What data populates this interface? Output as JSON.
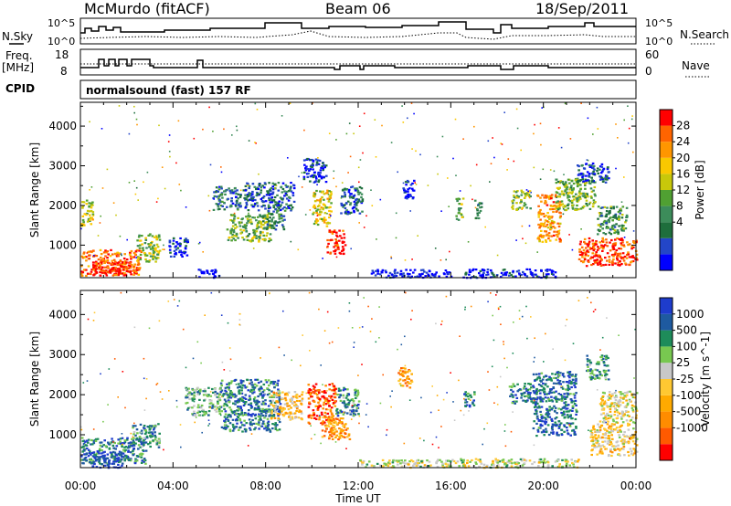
{
  "header": {
    "station": "McMurdo (fitACF)",
    "beam": "Beam 06",
    "date": "18/Sep/2011"
  },
  "strip_labels": {
    "nsky": "N.Sky",
    "nsearch": "N.Search",
    "freq_line1": "Freq.",
    "freq_line2": "[MHz]",
    "nave": "Nave",
    "cpid": "CPID",
    "cpid_value": "normalsound (fast) 157 RF"
  },
  "noise_axis": {
    "left_ticks": [
      "10^5",
      "10^0"
    ],
    "right_ticks": [
      "10^5",
      "10^0"
    ]
  },
  "freq_axis": {
    "left_ticks": [
      "18",
      "8"
    ],
    "right_ticks": [
      "60",
      "0"
    ]
  },
  "chart_data": [
    {
      "type": "heatmap",
      "name": "power",
      "ylabel": "Slant Range [km]",
      "xlabel": "",
      "xlim": [
        0,
        24
      ],
      "ylim": [
        180,
        4600
      ],
      "yticks": [
        1000,
        2000,
        3000,
        4000
      ],
      "colorbar": {
        "label": "Power [dB]",
        "ticks": [
          "28",
          "24",
          "20",
          "16",
          "12",
          "8",
          "4"
        ],
        "colors": [
          "#0000ff",
          "#2346c8",
          "#1e6e3c",
          "#3c8c5a",
          "#50a032",
          "#c8c80a",
          "#fac800",
          "#ff9600",
          "#ff6400",
          "#ff0000"
        ]
      },
      "patches": [
        {
          "t0": 0.0,
          "t1": 2.6,
          "r0": 250,
          "r1": 900,
          "v": 0.85
        },
        {
          "t0": 0.0,
          "t1": 0.5,
          "r0": 1500,
          "r1": 2150,
          "v": 0.55
        },
        {
          "t0": 0.5,
          "t1": 2.2,
          "r0": 250,
          "r1": 600,
          "v": 0.95
        },
        {
          "t0": 2.4,
          "t1": 3.4,
          "r0": 600,
          "r1": 1300,
          "v": 0.5
        },
        {
          "t0": 3.8,
          "t1": 4.6,
          "r0": 700,
          "r1": 1200,
          "v": 0.1
        },
        {
          "t0": 5.7,
          "t1": 6.9,
          "r0": 1900,
          "r1": 2500,
          "v": 0.25
        },
        {
          "t0": 6.3,
          "t1": 8.2,
          "r0": 1100,
          "r1": 1800,
          "v": 0.45
        },
        {
          "t0": 7.0,
          "t1": 9.2,
          "r0": 1900,
          "r1": 2600,
          "v": 0.2
        },
        {
          "t0": 8.0,
          "t1": 8.8,
          "r0": 1400,
          "r1": 1900,
          "v": 0.3
        },
        {
          "t0": 9.6,
          "t1": 10.6,
          "r0": 2600,
          "r1": 3200,
          "v": 0.1
        },
        {
          "t0": 10.0,
          "t1": 10.8,
          "r0": 1500,
          "r1": 2400,
          "v": 0.6
        },
        {
          "t0": 10.6,
          "t1": 11.4,
          "r0": 800,
          "r1": 1400,
          "v": 0.95
        },
        {
          "t0": 11.2,
          "t1": 12.2,
          "r0": 1800,
          "r1": 2500,
          "v": 0.2
        },
        {
          "t0": 13.9,
          "t1": 14.4,
          "r0": 2200,
          "r1": 2700,
          "v": 0.05
        },
        {
          "t0": 16.2,
          "t1": 16.5,
          "r0": 1600,
          "r1": 2200,
          "v": 0.45
        },
        {
          "t0": 17.0,
          "t1": 17.3,
          "r0": 1700,
          "r1": 2200,
          "v": 0.3
        },
        {
          "t0": 18.6,
          "t1": 19.4,
          "r0": 1900,
          "r1": 2400,
          "v": 0.5
        },
        {
          "t0": 19.7,
          "t1": 20.7,
          "r0": 1100,
          "r1": 2300,
          "v": 0.75
        },
        {
          "t0": 20.5,
          "t1": 22.2,
          "r0": 1900,
          "r1": 2700,
          "v": 0.45
        },
        {
          "t0": 21.4,
          "t1": 22.8,
          "r0": 2600,
          "r1": 3100,
          "v": 0.15
        },
        {
          "t0": 21.5,
          "t1": 24.0,
          "r0": 500,
          "r1": 1200,
          "v": 0.9
        },
        {
          "t0": 22.3,
          "t1": 23.6,
          "r0": 1300,
          "r1": 2000,
          "v": 0.35
        },
        {
          "t0": 5.0,
          "t1": 6.0,
          "r0": 200,
          "r1": 420,
          "v": 0.05
        },
        {
          "t0": 12.5,
          "t1": 16.0,
          "r0": 200,
          "r1": 400,
          "v": 0.05
        },
        {
          "t0": 16.5,
          "t1": 20.5,
          "r0": 200,
          "r1": 420,
          "v": 0.1
        }
      ]
    },
    {
      "type": "heatmap",
      "name": "velocity",
      "ylabel": "Slant Range [km]",
      "xlabel": "Time UT",
      "xlim": [
        0,
        24
      ],
      "ylim": [
        180,
        4600
      ],
      "yticks": [
        1000,
        2000,
        3000,
        4000
      ],
      "xticks": [
        "00:00",
        "04:00",
        "08:00",
        "12:00",
        "16:00",
        "20:00",
        "00:00"
      ],
      "colorbar": {
        "label": "Velocity [m s^-1]",
        "ticks": [
          "1000",
          "500",
          "100",
          "25",
          "-25",
          "-100",
          "-500",
          "-1000"
        ],
        "colors": [
          "#ff0000",
          "#ff5a00",
          "#ff8c00",
          "#ffaa00",
          "#ffc832",
          "#c8c8c8",
          "#78c850",
          "#1e8c5a",
          "#1e5aa0",
          "#1e3ccc"
        ]
      },
      "patches": [
        {
          "t0": 0.0,
          "t1": 2.8,
          "r0": 300,
          "r1": 950,
          "v": 0.8
        },
        {
          "t0": 0.3,
          "t1": 1.8,
          "r0": 200,
          "r1": 600,
          "v": 0.9
        },
        {
          "t0": 2.2,
          "t1": 3.4,
          "r0": 700,
          "r1": 1300,
          "v": 0.75
        },
        {
          "t0": 6.0,
          "t1": 8.6,
          "r0": 1100,
          "r1": 2400,
          "v": 0.8
        },
        {
          "t0": 8.2,
          "t1": 9.6,
          "r0": 1400,
          "r1": 2100,
          "v": 0.4
        },
        {
          "t0": 9.8,
          "t1": 11.0,
          "r0": 1300,
          "r1": 2300,
          "v": 0.15
        },
        {
          "t0": 10.4,
          "t1": 11.6,
          "r0": 900,
          "r1": 1500,
          "v": 0.3
        },
        {
          "t0": 11.0,
          "t1": 12.0,
          "r0": 1500,
          "r1": 2200,
          "v": 0.75
        },
        {
          "t0": 13.7,
          "t1": 14.3,
          "r0": 2200,
          "r1": 2700,
          "v": 0.3
        },
        {
          "t0": 16.5,
          "t1": 17.0,
          "r0": 1700,
          "r1": 2100,
          "v": 0.8
        },
        {
          "t0": 18.5,
          "t1": 19.5,
          "r0": 1800,
          "r1": 2300,
          "v": 0.8
        },
        {
          "t0": 19.5,
          "t1": 21.4,
          "r0": 1000,
          "r1": 2600,
          "v": 0.85
        },
        {
          "t0": 21.8,
          "t1": 22.8,
          "r0": 2400,
          "r1": 3000,
          "v": 0.75
        },
        {
          "t0": 22.0,
          "t1": 24.0,
          "r0": 500,
          "r1": 1300,
          "v": 0.45
        },
        {
          "t0": 22.4,
          "t1": 24.0,
          "r0": 1300,
          "r1": 2100,
          "v": 0.5
        },
        {
          "t0": 4.5,
          "t1": 6.0,
          "r0": 1500,
          "r1": 2200,
          "v": 0.7
        },
        {
          "t0": 12.0,
          "t1": 16.0,
          "r0": 200,
          "r1": 400,
          "v": 0.55
        },
        {
          "t0": 16.0,
          "t1": 21.5,
          "r0": 200,
          "r1": 420,
          "v": 0.55
        }
      ]
    }
  ]
}
